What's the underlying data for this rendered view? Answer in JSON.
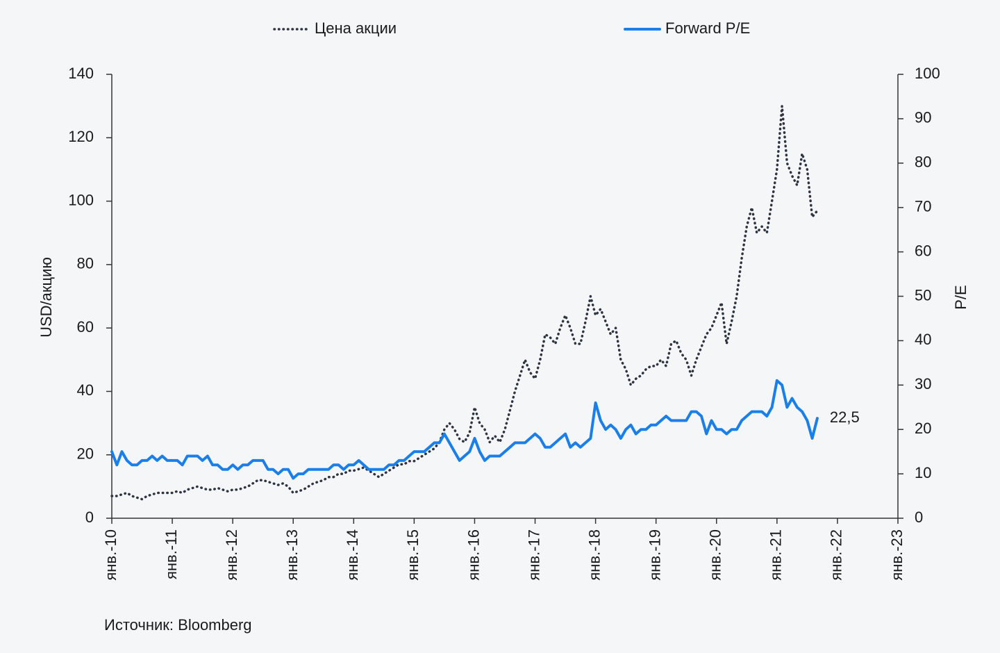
{
  "chart_data": {
    "type": "line",
    "y_label": "USD/акцию",
    "y2_label": "P/E",
    "source": "Источник: Bloomberg",
    "categories": [
      "янв.-10",
      null,
      null,
      null,
      null,
      null,
      null,
      null,
      null,
      null,
      null,
      null,
      "янв.-11",
      null,
      null,
      null,
      null,
      null,
      null,
      null,
      null,
      null,
      null,
      null,
      "янв.-12",
      null,
      null,
      null,
      null,
      null,
      null,
      null,
      null,
      null,
      null,
      null,
      "янв.-13",
      null,
      null,
      null,
      null,
      null,
      null,
      null,
      null,
      null,
      null,
      null,
      "янв.-14",
      null,
      null,
      null,
      null,
      null,
      null,
      null,
      null,
      null,
      null,
      null,
      "янв.-15",
      null,
      null,
      null,
      null,
      null,
      null,
      null,
      null,
      null,
      null,
      null,
      "янв.-16",
      null,
      null,
      null,
      null,
      null,
      null,
      null,
      null,
      null,
      null,
      null,
      "янв.-17",
      null,
      null,
      null,
      null,
      null,
      null,
      null,
      null,
      null,
      null,
      null,
      "янв.-18",
      null,
      null,
      null,
      null,
      null,
      null,
      null,
      null,
      null,
      null,
      null,
      "янв.-19",
      null,
      null,
      null,
      null,
      null,
      null,
      null,
      null,
      null,
      null,
      null,
      "янв.-20",
      null,
      null,
      null,
      null,
      null,
      null,
      null,
      null,
      null,
      null,
      null,
      "янв.-21",
      null,
      null,
      null,
      null,
      null,
      null,
      null,
      null,
      null,
      null,
      null,
      "янв.-22",
      null,
      null,
      null,
      null,
      null,
      null,
      null,
      null,
      null,
      null,
      null,
      "янв.-23"
    ],
    "series": [
      {
        "name": "Цена акции",
        "color": "#2e3440",
        "dash": "dotted",
        "values": [
          7,
          7,
          7.5,
          8,
          7,
          6.5,
          6,
          7,
          7.5,
          8,
          8,
          8,
          8,
          8.5,
          8,
          9,
          9.5,
          10,
          9.5,
          9,
          9,
          9.5,
          9,
          8.5,
          9,
          9,
          9.5,
          10,
          11,
          12,
          12,
          11.5,
          11,
          10.5,
          11,
          10,
          8,
          8.5,
          9,
          10,
          11,
          11.5,
          12,
          13,
          13,
          14,
          14,
          15,
          15,
          15.5,
          16,
          15,
          14,
          13,
          14,
          15,
          16,
          17,
          17,
          18,
          18,
          19,
          20,
          21,
          22,
          24,
          28,
          30,
          28,
          25,
          24,
          27,
          35,
          30,
          28,
          24,
          26,
          24,
          28,
          34,
          40,
          45,
          50,
          46,
          44,
          50,
          58,
          57,
          55,
          60,
          64,
          60,
          55,
          55,
          62,
          70,
          64,
          66,
          62,
          58,
          60,
          50,
          47,
          42,
          44,
          45,
          47,
          48,
          48,
          50,
          48,
          55,
          56,
          52,
          50,
          45,
          50,
          54,
          58,
          60,
          64,
          68,
          55,
          62,
          70,
          82,
          92,
          98,
          90,
          92,
          90,
          100,
          110,
          130,
          112,
          108,
          105,
          115,
          110,
          95,
          97,
          null,
          null,
          null,
          null,
          null,
          null,
          null,
          null,
          null,
          null,
          null,
          null,
          null,
          null,
          null,
          null
        ]
      },
      {
        "name": "Forward P/E",
        "color": "#1a7fe8",
        "dash": "solid",
        "axis": "y2",
        "values": [
          15,
          12,
          15,
          13,
          12,
          12,
          13,
          13,
          14,
          13,
          14,
          13,
          13,
          13,
          12,
          14,
          14,
          14,
          13,
          14,
          12,
          12,
          11,
          11,
          12,
          11,
          12,
          12,
          13,
          13,
          13,
          11,
          11,
          10,
          11,
          11,
          9,
          10,
          10,
          11,
          11,
          11,
          11,
          11,
          12,
          12,
          11,
          12,
          12,
          13,
          12,
          11,
          11,
          11,
          11,
          12,
          12,
          13,
          13,
          14,
          15,
          15,
          15,
          16,
          17,
          17,
          19,
          17,
          15,
          13,
          14,
          15,
          18,
          15,
          13,
          14,
          14,
          14,
          15,
          16,
          17,
          17,
          17,
          18,
          19,
          18,
          16,
          16,
          17,
          18,
          19,
          16,
          17,
          16,
          17,
          18,
          26,
          22,
          20,
          21,
          20,
          18,
          20,
          21,
          19,
          20,
          20,
          21,
          21,
          22,
          23,
          22,
          22,
          22,
          22,
          24,
          24,
          23,
          19,
          22,
          20,
          20,
          19,
          20,
          20,
          22,
          23,
          24,
          24,
          24,
          23,
          25,
          31,
          30,
          25,
          27,
          25,
          24,
          22,
          18,
          22.5,
          null,
          null,
          null,
          null,
          null,
          null,
          null,
          null,
          null,
          null,
          null,
          null,
          null,
          null,
          null,
          null
        ],
        "value_labels": [
          null,
          null,
          null,
          null,
          null,
          null,
          null,
          null,
          null,
          null,
          null,
          null,
          null,
          null,
          null,
          null,
          null,
          null,
          null,
          null,
          null,
          null,
          null,
          null,
          null,
          null,
          null,
          null,
          null,
          null,
          null,
          null,
          null,
          null,
          null,
          null,
          null,
          null,
          null,
          null,
          null,
          null,
          null,
          null,
          null,
          null,
          null,
          null,
          null,
          null,
          null,
          null,
          null,
          null,
          null,
          null,
          null,
          null,
          null,
          null,
          null,
          null,
          null,
          null,
          null,
          null,
          null,
          null,
          null,
          null,
          null,
          null,
          null,
          null,
          null,
          null,
          null,
          null,
          null,
          null,
          null,
          null,
          null,
          null,
          null,
          null,
          null,
          null,
          null,
          null,
          null,
          null,
          null,
          null,
          null,
          null,
          null,
          null,
          null,
          null,
          null,
          null,
          null,
          null,
          null,
          null,
          null,
          null,
          null,
          null,
          null,
          null,
          null,
          null,
          null,
          null,
          null,
          null,
          null,
          null,
          null,
          null,
          null,
          null,
          null,
          null,
          null,
          null,
          null,
          null,
          null,
          null,
          null,
          null,
          null,
          null,
          null,
          null,
          null,
          null,
          "22,5",
          null,
          null,
          null,
          null,
          null,
          null,
          null,
          null,
          null,
          null,
          null,
          null,
          null,
          null,
          null,
          null
        ]
      }
    ],
    "ylim": [
      0,
      140
    ],
    "yticks": [
      0,
      20,
      40,
      60,
      80,
      100,
      120,
      140
    ],
    "y2lim": [
      0,
      100
    ],
    "y2ticks": [
      0,
      10,
      20,
      30,
      40,
      50,
      60,
      70,
      80,
      90,
      100
    ],
    "legend": "top"
  }
}
